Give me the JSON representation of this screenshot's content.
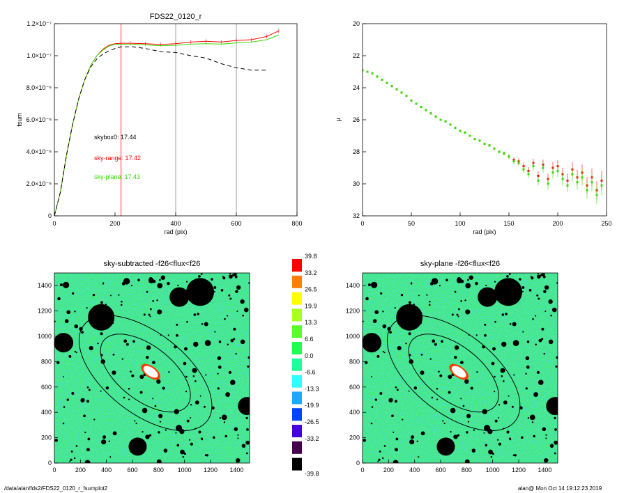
{
  "footer": {
    "path": "/data/alan/fds2/FDS22_0120_r_fsumplot2",
    "stamp": "alan@  Mon Oct 14 19:12:23 2019"
  },
  "colors": {
    "black_profile": "#000000",
    "sky_range": "#ff0000",
    "sky_plane": "#33dd00",
    "vertical_marker_red": "#ff0000",
    "vertical_marker_gray": "#888888"
  },
  "chart_data": [
    {
      "type": "line",
      "title": "FDS22_0120_r",
      "xlabel": "rad (pix)",
      "ylabel": "fsum",
      "xlim": [
        0,
        800
      ],
      "ylim": [
        0,
        1.2e-07
      ],
      "xticks": [
        "0",
        "200",
        "400",
        "600",
        "800"
      ],
      "yticks": [
        "0",
        "2.0×10⁻⁸",
        "4.0×10⁻⁸",
        "6.0×10⁻⁸",
        "8.0×10⁻⁸",
        "1.0×10⁻⁷",
        "1.2×10⁻⁷"
      ],
      "ytick_values": [
        0,
        2e-08,
        4e-08,
        6e-08,
        8e-08,
        1e-07,
        1.2e-07
      ],
      "vertical_lines": [
        {
          "x": 220,
          "color": "#ff0000"
        },
        {
          "x": 400,
          "color": "#888888"
        },
        {
          "x": 600,
          "color": "#888888"
        }
      ],
      "annotations": [
        {
          "text": "skybox0: 17.44",
          "color": "#000000"
        },
        {
          "text": "sky-range: 17.42",
          "color": "#ff0000"
        },
        {
          "text": "sky-plane: 17.43",
          "color": "#33dd00"
        }
      ],
      "series": [
        {
          "style": "solid",
          "color": "#ff0000",
          "x": [
            0,
            20,
            40,
            60,
            80,
            100,
            120,
            140,
            160,
            180,
            200,
            220,
            250,
            300,
            350,
            400,
            450,
            500,
            550,
            600,
            650,
            700,
            740
          ],
          "y": [
            0,
            1.5e-08,
            3.8e-08,
            5.7e-08,
            7.3e-08,
            8.5e-08,
            9.4e-08,
            1e-07,
            1.04e-07,
            1.065e-07,
            1.075e-07,
            1.078e-07,
            1.078e-07,
            1.075e-07,
            1.07e-07,
            1.075e-07,
            1.085e-07,
            1.09e-07,
            1.085e-07,
            1.095e-07,
            1.1e-07,
            1.12e-07,
            1.155e-07
          ]
        },
        {
          "style": "solid",
          "color": "#33dd00",
          "x": [
            0,
            20,
            40,
            60,
            80,
            100,
            120,
            140,
            160,
            180,
            200,
            220,
            250,
            300,
            350,
            400,
            450,
            500,
            550,
            600,
            650,
            700,
            740
          ],
          "y": [
            0,
            1.5e-08,
            3.8e-08,
            5.7e-08,
            7.3e-08,
            8.5e-08,
            9.4e-08,
            1e-07,
            1.035e-07,
            1.06e-07,
            1.07e-07,
            1.072e-07,
            1.072e-07,
            1.068e-07,
            1.062e-07,
            1.065e-07,
            1.072e-07,
            1.075e-07,
            1.072e-07,
            1.08e-07,
            1.085e-07,
            1.1e-07,
            1.13e-07
          ]
        },
        {
          "style": "dashed",
          "color": "#000000",
          "x": [
            0,
            20,
            40,
            60,
            80,
            100,
            120,
            140,
            160,
            180,
            200,
            220,
            260,
            300,
            350,
            400,
            450,
            500,
            550,
            600,
            650,
            700
          ],
          "y": [
            0,
            1.5e-08,
            3.8e-08,
            5.7e-08,
            7.3e-08,
            8.5e-08,
            9.3e-08,
            9.8e-08,
            1.01e-07,
            1.03e-07,
            1.045e-07,
            1.055e-07,
            1.055e-07,
            1.045e-07,
            1.025e-07,
            1.02e-07,
            1e-07,
            9.85e-08,
            9.5e-08,
            9.25e-08,
            9.1e-08,
            9.1e-08
          ]
        }
      ]
    },
    {
      "type": "scatter",
      "xlabel": "rad (pix)",
      "ylabel": "μ",
      "xlim": [
        0,
        250
      ],
      "ylim": [
        32,
        20
      ],
      "xticks": [
        "0",
        "50",
        "100",
        "150",
        "200",
        "250"
      ],
      "yticks": [
        "20",
        "22",
        "24",
        "26",
        "28",
        "30",
        "32"
      ],
      "series": [
        {
          "color": "#ff0000",
          "x": [
            0,
            5,
            10,
            15,
            20,
            25,
            30,
            35,
            40,
            45,
            50,
            55,
            60,
            65,
            70,
            75,
            80,
            85,
            90,
            95,
            100,
            105,
            110,
            115,
            120,
            125,
            130,
            135,
            140,
            145,
            150,
            155,
            160,
            165,
            170,
            175,
            180,
            185,
            190,
            195,
            200,
            205,
            210,
            215,
            220,
            225,
            230,
            235,
            240,
            245
          ],
          "y": [
            22.9,
            23.0,
            23.1,
            23.3,
            23.5,
            23.7,
            23.9,
            24.1,
            24.3,
            24.5,
            24.8,
            25.0,
            25.2,
            25.4,
            25.6,
            25.8,
            26.0,
            26.1,
            26.3,
            26.5,
            26.7,
            26.8,
            27.0,
            27.2,
            27.3,
            27.5,
            27.6,
            27.8,
            28.0,
            28.1,
            28.3,
            28.5,
            28.6,
            28.9,
            29.2,
            28.7,
            29.5,
            28.8,
            29.7,
            29.0,
            28.9,
            29.4,
            29.8,
            29.1,
            29.6,
            29.3,
            30.1,
            29.6,
            30.4,
            29.8
          ]
        },
        {
          "color": "#33dd00",
          "x": [
            0,
            5,
            10,
            15,
            20,
            25,
            30,
            35,
            40,
            45,
            50,
            55,
            60,
            65,
            70,
            75,
            80,
            85,
            90,
            95,
            100,
            105,
            110,
            115,
            120,
            125,
            130,
            135,
            140,
            145,
            150,
            155,
            160,
            165,
            170,
            175,
            180,
            185,
            190,
            195,
            200,
            205,
            210,
            215,
            220,
            225,
            230,
            235,
            240,
            245
          ],
          "y": [
            22.9,
            23.0,
            23.1,
            23.3,
            23.5,
            23.7,
            23.9,
            24.1,
            24.3,
            24.5,
            24.8,
            25.0,
            25.2,
            25.4,
            25.6,
            25.8,
            26.0,
            26.1,
            26.3,
            26.5,
            26.7,
            26.8,
            27.0,
            27.2,
            27.3,
            27.5,
            27.6,
            27.8,
            28.0,
            28.1,
            28.3,
            28.6,
            28.7,
            29.1,
            29.4,
            28.9,
            29.8,
            29.0,
            30.0,
            29.3,
            29.2,
            29.7,
            30.1,
            29.4,
            29.9,
            29.6,
            30.4,
            29.9,
            30.7,
            30.1
          ]
        }
      ]
    },
    {
      "type": "heatmap",
      "title": "sky-subtracted -f26<flux<f26",
      "xlim": [
        0,
        1500
      ],
      "ylim": [
        0,
        1500
      ],
      "xticks": [
        "0",
        "200",
        "400",
        "600",
        "800",
        "1000",
        "1200",
        "1400"
      ],
      "yticks": [
        "0",
        "200",
        "400",
        "600",
        "800",
        "1000",
        "1200",
        "1400"
      ]
    },
    {
      "type": "heatmap",
      "title": "sky-plane -f26<flux<f26",
      "xlim": [
        0,
        1500
      ],
      "ylim": [
        0,
        1500
      ],
      "xticks": [
        "0",
        "200",
        "400",
        "600",
        "800",
        "1000",
        "1200",
        "1400"
      ],
      "yticks": [
        "0",
        "200",
        "400",
        "600",
        "800",
        "1000",
        "1200",
        "1400"
      ]
    },
    {
      "type": "table",
      "labels": [
        "39.8",
        "33.2",
        "26.5",
        "19.9",
        "13.3",
        "6.6",
        "0.0",
        "-6.6",
        "-13.3",
        "-19.9",
        "-26.5",
        "-33.2",
        "-39.8"
      ],
      "colors": [
        "#ff0000",
        "#ff7f00",
        "#ffff00",
        "#a8ff20",
        "#5aff2a",
        "#20ff50",
        "#20ff9a",
        "#30ffff",
        "#20a8ff",
        "#0044ff",
        "#4400dd",
        "#44004a",
        "#000000"
      ]
    }
  ]
}
